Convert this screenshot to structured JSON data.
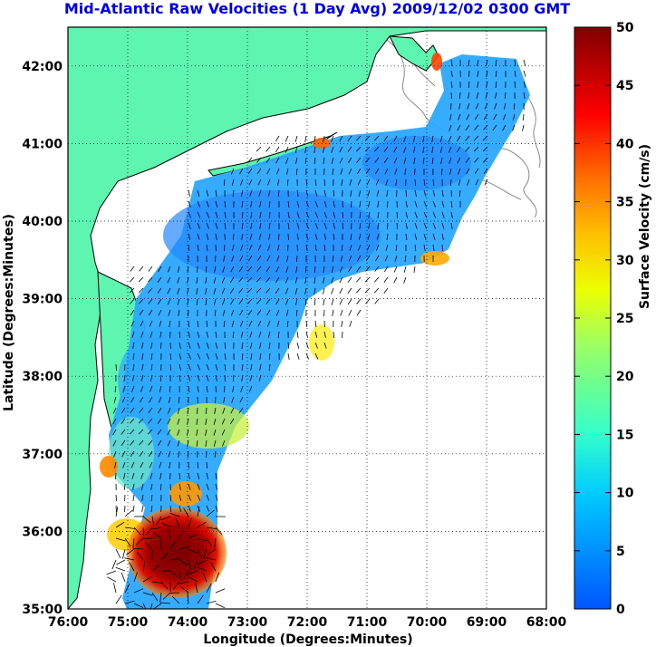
{
  "title": "Mid-Atlantic Raw Velocities (1 Day Avg) 2009/12/02 0300 GMT",
  "chart_data": {
    "type": "heatmap",
    "title": "Mid-Atlantic Raw Velocities (1 Day Avg) 2009/12/02 0300 GMT",
    "xlabel": "Longitude (Degrees:Minutes)",
    "ylabel": "Latitude (Degrees:Minutes)",
    "x_ticks": [
      "76:00",
      "75:00",
      "74:00",
      "73:00",
      "72:00",
      "71:00",
      "70:00",
      "69:00",
      "68:00"
    ],
    "y_ticks": [
      "42:00",
      "41:00",
      "40:00",
      "39:00",
      "38:00",
      "37:00",
      "36:00",
      "35:00"
    ],
    "xlim": [
      -76,
      -68
    ],
    "ylim": [
      35,
      42.5
    ],
    "grid": true,
    "colorbar": {
      "label": "Surface Velocity (cm/s)",
      "ticks": [
        "50",
        "45",
        "40",
        "35",
        "30",
        "25",
        "20",
        "15",
        "10",
        "5",
        "0"
      ],
      "range": [
        0,
        50
      ],
      "colormap": "jet"
    }
  },
  "colors": {
    "land": "#5ef5b0",
    "water": "#ffffff",
    "title": "#0000e6",
    "coast": "#000000"
  }
}
